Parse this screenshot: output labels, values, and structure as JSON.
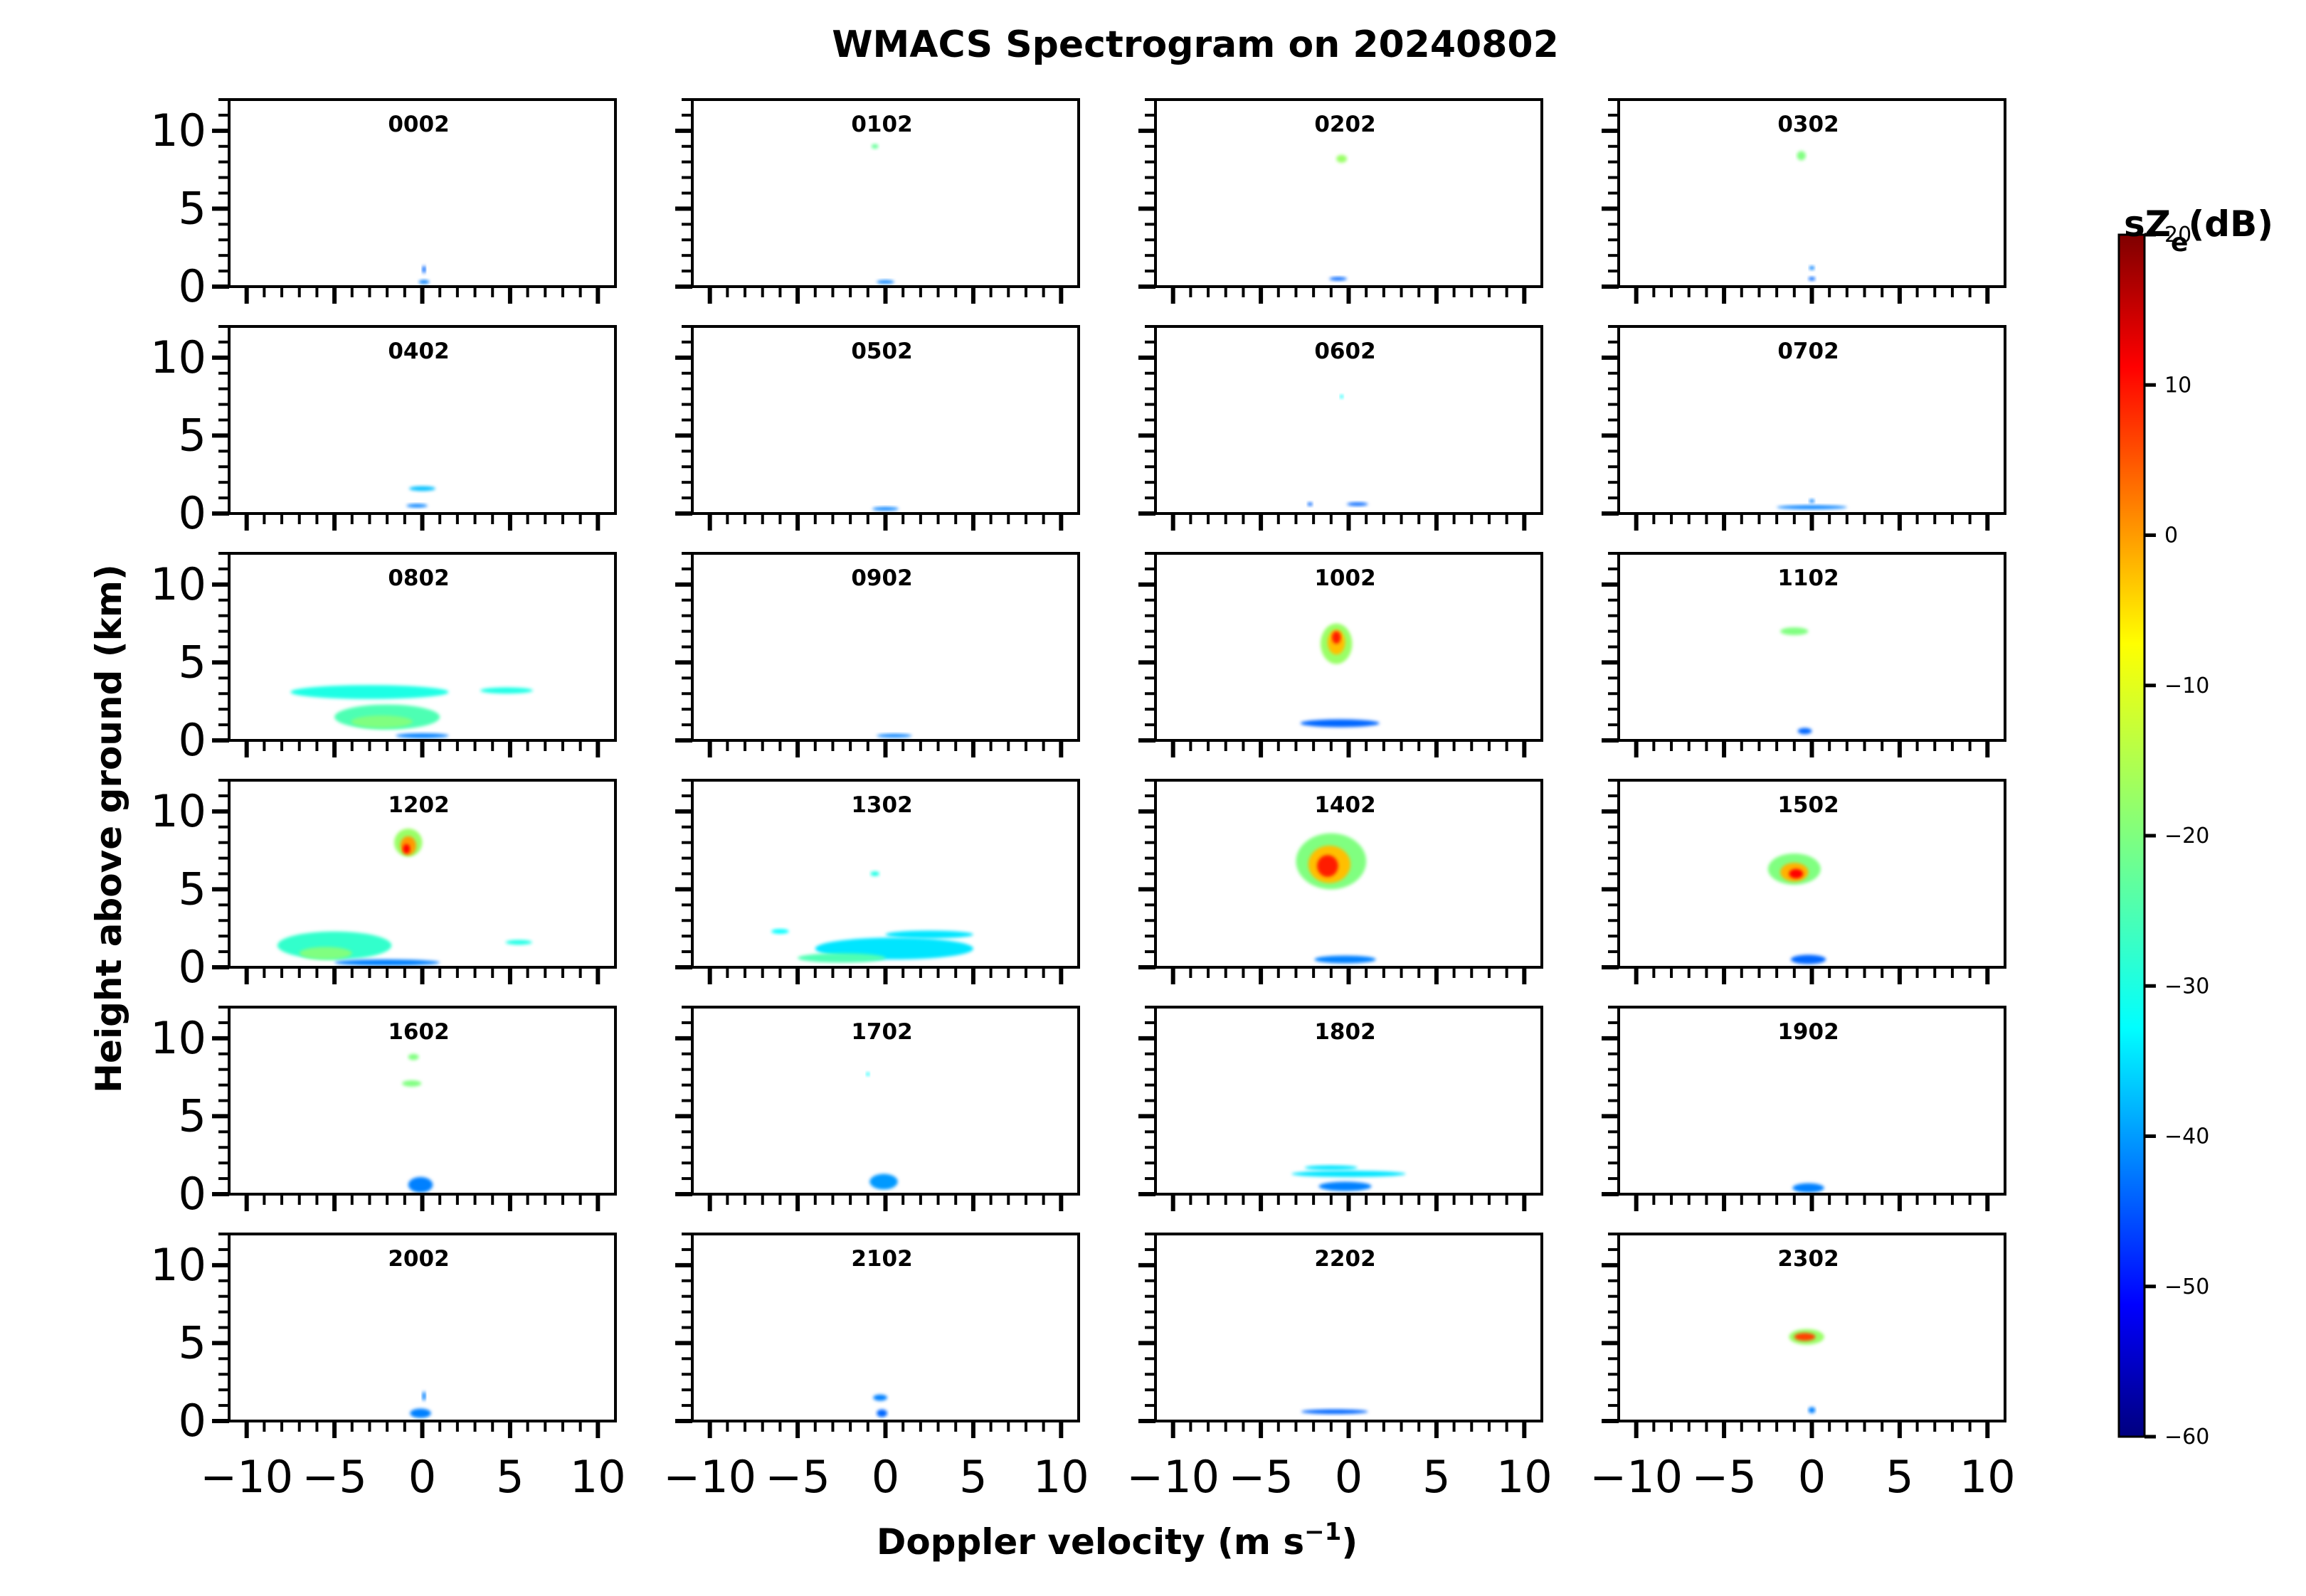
{
  "figure": {
    "title": "WMACS Spectrogram on 20240802",
    "xlabel": "Doppler velocity (m s",
    "xlabel_sup": "−1",
    "xlabel_close": ")",
    "ylabel": "Height above ground (km)"
  },
  "chart_data": {
    "type": "heatmap",
    "layout": {
      "rows": 6,
      "cols": 4
    },
    "x_ticks": [
      -10,
      -5,
      0,
      5,
      10
    ],
    "x_tick_labels": [
      "−10",
      "−5",
      "0",
      "5",
      "10"
    ],
    "y_ticks": [
      0,
      5,
      10
    ],
    "y_tick_labels": [
      "0",
      "5",
      "10"
    ],
    "xlim": [
      -11,
      11
    ],
    "ylim": [
      0,
      12
    ],
    "grid": false,
    "colorbar": {
      "label_main": "sZ",
      "label_sub": "e",
      "label_unit": "(dB)",
      "ticks": [
        20,
        10,
        0,
        -10,
        -20,
        -30,
        -40,
        -50,
        -60
      ],
      "tick_labels": [
        "20",
        "10",
        "0",
        "−10",
        "−20",
        "−30",
        "−40",
        "−50",
        "−60"
      ],
      "range": [
        -60,
        20
      ],
      "colormap": "jet"
    },
    "panels": [
      {
        "label": "0002",
        "echoes": [
          {
            "v": 0.1,
            "h": 0.3,
            "w": 0.6,
            "t": 0.25,
            "dbz": -40
          },
          {
            "v": 0.1,
            "h": 1.1,
            "w": 0.15,
            "t": 0.5,
            "dbz": -42
          }
        ]
      },
      {
        "label": "0102",
        "echoes": [
          {
            "v": -0.6,
            "h": 9.0,
            "w": 0.4,
            "t": 0.3,
            "dbz": -22
          },
          {
            "v": 0.0,
            "h": 0.3,
            "w": 1.0,
            "t": 0.2,
            "dbz": -40
          }
        ]
      },
      {
        "label": "0202",
        "echoes": [
          {
            "v": -0.4,
            "h": 8.2,
            "w": 0.6,
            "t": 0.5,
            "dbz": -18
          },
          {
            "v": -0.6,
            "h": 0.5,
            "w": 1.0,
            "t": 0.15,
            "dbz": -42
          }
        ]
      },
      {
        "label": "0302",
        "echoes": [
          {
            "v": -0.6,
            "h": 8.4,
            "w": 0.5,
            "t": 0.6,
            "dbz": -20
          },
          {
            "v": 0.0,
            "h": 1.2,
            "w": 0.3,
            "t": 0.25,
            "dbz": -40
          },
          {
            "v": 0.0,
            "h": 0.5,
            "w": 0.4,
            "t": 0.2,
            "dbz": -42
          }
        ]
      },
      {
        "label": "0402",
        "echoes": [
          {
            "v": 0.0,
            "h": 1.6,
            "w": 1.5,
            "t": 0.3,
            "dbz": -35
          },
          {
            "v": -0.3,
            "h": 0.5,
            "w": 1.2,
            "t": 0.2,
            "dbz": -40
          }
        ]
      },
      {
        "label": "0502",
        "echoes": [
          {
            "v": 0.0,
            "h": 0.3,
            "w": 1.5,
            "t": 0.2,
            "dbz": -40
          }
        ]
      },
      {
        "label": "0602",
        "echoes": [
          {
            "v": -0.4,
            "h": 7.5,
            "w": 0.2,
            "t": 0.15,
            "dbz": -30
          },
          {
            "v": -2.2,
            "h": 0.6,
            "w": 0.3,
            "t": 0.15,
            "dbz": -42
          },
          {
            "v": 0.5,
            "h": 0.6,
            "w": 1.2,
            "t": 0.15,
            "dbz": -42
          }
        ]
      },
      {
        "label": "0702",
        "echoes": [
          {
            "v": 0.0,
            "h": 0.4,
            "w": 4.0,
            "t": 0.25,
            "dbz": -40
          },
          {
            "v": 0.0,
            "h": 0.8,
            "w": 0.3,
            "t": 0.2,
            "dbz": -40
          }
        ]
      },
      {
        "label": "0802",
        "echoes": [
          {
            "v": -3.0,
            "h": 3.1,
            "w": 9.0,
            "t": 0.9,
            "dbz": -28
          },
          {
            "v": -2.0,
            "h": 1.5,
            "w": 6.0,
            "t": 1.6,
            "dbz": -24
          },
          {
            "v": -2.3,
            "h": 1.2,
            "w": 3.5,
            "t": 0.8,
            "dbz": -20
          },
          {
            "v": 4.8,
            "h": 3.2,
            "w": 3.0,
            "t": 0.4,
            "dbz": -28
          },
          {
            "v": 0.0,
            "h": 0.3,
            "w": 3.0,
            "t": 0.3,
            "dbz": -40
          }
        ]
      },
      {
        "label": "0902",
        "echoes": [
          {
            "v": 0.5,
            "h": 0.3,
            "w": 2.0,
            "t": 0.2,
            "dbz": -40
          }
        ]
      },
      {
        "label": "1002",
        "echoes": [
          {
            "v": -0.7,
            "h": 6.2,
            "w": 1.8,
            "t": 2.6,
            "dbz": -18
          },
          {
            "v": -0.7,
            "h": 6.3,
            "w": 1.0,
            "t": 1.6,
            "dbz": -5
          },
          {
            "v": -0.7,
            "h": 6.6,
            "w": 0.5,
            "t": 0.8,
            "dbz": 8
          },
          {
            "v": -0.5,
            "h": 1.1,
            "w": 4.5,
            "t": 0.5,
            "dbz": -42
          }
        ]
      },
      {
        "label": "1102",
        "echoes": [
          {
            "v": -1.0,
            "h": 7.0,
            "w": 1.6,
            "t": 0.5,
            "dbz": -20
          },
          {
            "v": -0.4,
            "h": 0.6,
            "w": 0.8,
            "t": 0.4,
            "dbz": -42
          }
        ]
      },
      {
        "label": "1202",
        "echoes": [
          {
            "v": -0.8,
            "h": 8.0,
            "w": 1.6,
            "t": 1.8,
            "dbz": -18
          },
          {
            "v": -0.8,
            "h": 7.8,
            "w": 0.9,
            "t": 1.2,
            "dbz": -2
          },
          {
            "v": -0.9,
            "h": 7.6,
            "w": 0.4,
            "t": 0.6,
            "dbz": 10
          },
          {
            "v": -5.0,
            "h": 1.4,
            "w": 6.5,
            "t": 1.8,
            "dbz": -26
          },
          {
            "v": -5.5,
            "h": 0.9,
            "w": 3.0,
            "t": 0.8,
            "dbz": -20
          },
          {
            "v": -2.0,
            "h": 0.3,
            "w": 6.0,
            "t": 0.4,
            "dbz": -40
          },
          {
            "v": 5.5,
            "h": 1.6,
            "w": 1.5,
            "t": 0.3,
            "dbz": -28
          }
        ]
      },
      {
        "label": "1302",
        "echoes": [
          {
            "v": -0.6,
            "h": 6.0,
            "w": 0.5,
            "t": 0.3,
            "dbz": -28
          },
          {
            "v": 0.5,
            "h": 1.2,
            "w": 9.0,
            "t": 1.4,
            "dbz": -32
          },
          {
            "v": -2.5,
            "h": 0.6,
            "w": 5.0,
            "t": 0.6,
            "dbz": -24
          },
          {
            "v": -6.0,
            "h": 2.3,
            "w": 1.0,
            "t": 0.3,
            "dbz": -30
          },
          {
            "v": 2.5,
            "h": 2.1,
            "w": 5.0,
            "t": 0.5,
            "dbz": -32
          }
        ]
      },
      {
        "label": "1402",
        "echoes": [
          {
            "v": -1.0,
            "h": 6.8,
            "w": 4.0,
            "t": 3.6,
            "dbz": -20
          },
          {
            "v": -1.1,
            "h": 6.6,
            "w": 2.4,
            "t": 2.4,
            "dbz": -5
          },
          {
            "v": -1.2,
            "h": 6.5,
            "w": 1.2,
            "t": 1.4,
            "dbz": 8
          },
          {
            "v": -0.2,
            "h": 0.5,
            "w": 3.5,
            "t": 0.5,
            "dbz": -40
          }
        ]
      },
      {
        "label": "1502",
        "echoes": [
          {
            "v": -1.0,
            "h": 6.3,
            "w": 3.0,
            "t": 2.0,
            "dbz": -20
          },
          {
            "v": -1.0,
            "h": 6.1,
            "w": 1.6,
            "t": 1.2,
            "dbz": -4
          },
          {
            "v": -0.9,
            "h": 6.0,
            "w": 0.8,
            "t": 0.6,
            "dbz": 10
          },
          {
            "v": -0.2,
            "h": 0.5,
            "w": 2.0,
            "t": 0.6,
            "dbz": -42
          }
        ]
      },
      {
        "label": "1602",
        "echoes": [
          {
            "v": -0.5,
            "h": 8.8,
            "w": 0.6,
            "t": 0.4,
            "dbz": -20
          },
          {
            "v": -0.6,
            "h": 7.1,
            "w": 1.1,
            "t": 0.4,
            "dbz": -20
          },
          {
            "v": -0.1,
            "h": 0.6,
            "w": 1.4,
            "t": 1.0,
            "dbz": -40
          }
        ]
      },
      {
        "label": "1702",
        "echoes": [
          {
            "v": -1.0,
            "h": 7.7,
            "w": 0.2,
            "t": 0.2,
            "dbz": -30
          },
          {
            "v": -0.1,
            "h": 0.8,
            "w": 1.6,
            "t": 1.0,
            "dbz": -38
          }
        ]
      },
      {
        "label": "1802",
        "echoes": [
          {
            "v": 0.0,
            "h": 1.3,
            "w": 6.5,
            "t": 0.4,
            "dbz": -32
          },
          {
            "v": -1.0,
            "h": 1.7,
            "w": 3.0,
            "t": 0.3,
            "dbz": -32
          },
          {
            "v": -0.2,
            "h": 0.5,
            "w": 3.0,
            "t": 0.6,
            "dbz": -40
          }
        ]
      },
      {
        "label": "1902",
        "echoes": [
          {
            "v": -0.2,
            "h": 0.4,
            "w": 1.8,
            "t": 0.6,
            "dbz": -40
          }
        ]
      },
      {
        "label": "2002",
        "echoes": [
          {
            "v": 0.1,
            "h": 1.6,
            "w": 0.2,
            "t": 0.6,
            "dbz": -40
          },
          {
            "v": -0.1,
            "h": 0.5,
            "w": 1.2,
            "t": 0.6,
            "dbz": -40
          }
        ]
      },
      {
        "label": "2102",
        "echoes": [
          {
            "v": -0.3,
            "h": 1.5,
            "w": 0.8,
            "t": 0.4,
            "dbz": -40
          },
          {
            "v": -0.2,
            "h": 0.5,
            "w": 0.6,
            "t": 0.5,
            "dbz": -42
          }
        ]
      },
      {
        "label": "2202",
        "echoes": [
          {
            "v": -0.8,
            "h": 0.6,
            "w": 3.8,
            "t": 0.3,
            "dbz": -42
          }
        ]
      },
      {
        "label": "2302",
        "echoes": [
          {
            "v": -0.3,
            "h": 5.4,
            "w": 2.0,
            "t": 1.0,
            "dbz": -18
          },
          {
            "v": -0.4,
            "h": 5.4,
            "w": 1.2,
            "t": 0.5,
            "dbz": 5
          },
          {
            "v": 0.0,
            "h": 0.7,
            "w": 0.4,
            "t": 0.4,
            "dbz": -40
          }
        ]
      }
    ]
  }
}
